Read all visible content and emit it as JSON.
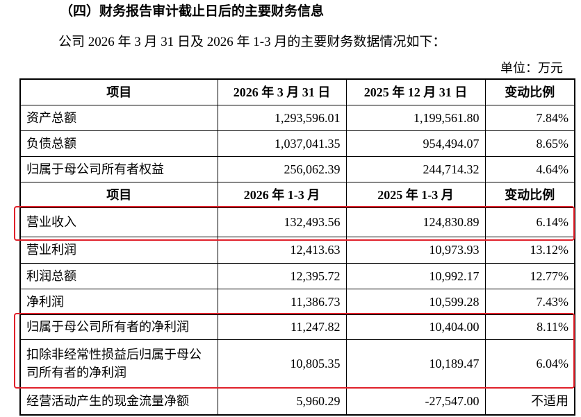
{
  "heading": "（四）财务报告审计截止日后的主要财务信息",
  "intro": "公司 2026 年 3 月 31 日及 2026 年 1-3 月的主要财务数据情况如下：",
  "unit": "单位：万元",
  "table": {
    "sections": [
      {
        "header": [
          "项目",
          "2026 年 3 月 31 日",
          "2025 年 12 月 31 日",
          "变动比例"
        ],
        "rows": [
          [
            "资产总额",
            "1,293,596.01",
            "1,199,561.80",
            "7.84%"
          ],
          [
            "负债总额",
            "1,037,041.35",
            "954,494.07",
            "8.65%"
          ],
          [
            "归属于母公司所有者权益",
            "256,062.39",
            "244,714.32",
            "4.64%"
          ]
        ]
      },
      {
        "header": [
          "项目",
          "2026 年 1-3 月",
          "2025 年 1-3 月",
          "变动比例"
        ],
        "rows": [
          [
            "营业收入",
            "132,493.56",
            "124,830.89",
            "6.14%"
          ],
          [
            "营业利润",
            "12,413.63",
            "10,973.93",
            "13.12%"
          ],
          [
            "利润总额",
            "12,395.72",
            "10,992.17",
            "12.77%"
          ],
          [
            "净利润",
            "11,386.73",
            "10,599.28",
            "7.43%"
          ],
          [
            "归属于母公司所有者的净利润",
            "11,247.82",
            "10,404.00",
            "8.11%"
          ],
          [
            "扣除非经常性损益后归属于母公司所有者的净利润",
            "10,805.35",
            "10,189.47",
            "6.04%"
          ],
          [
            "经营活动产生的现金流量净额",
            "5,960.29",
            "-27,547.00",
            "不适用"
          ]
        ]
      }
    ]
  }
}
